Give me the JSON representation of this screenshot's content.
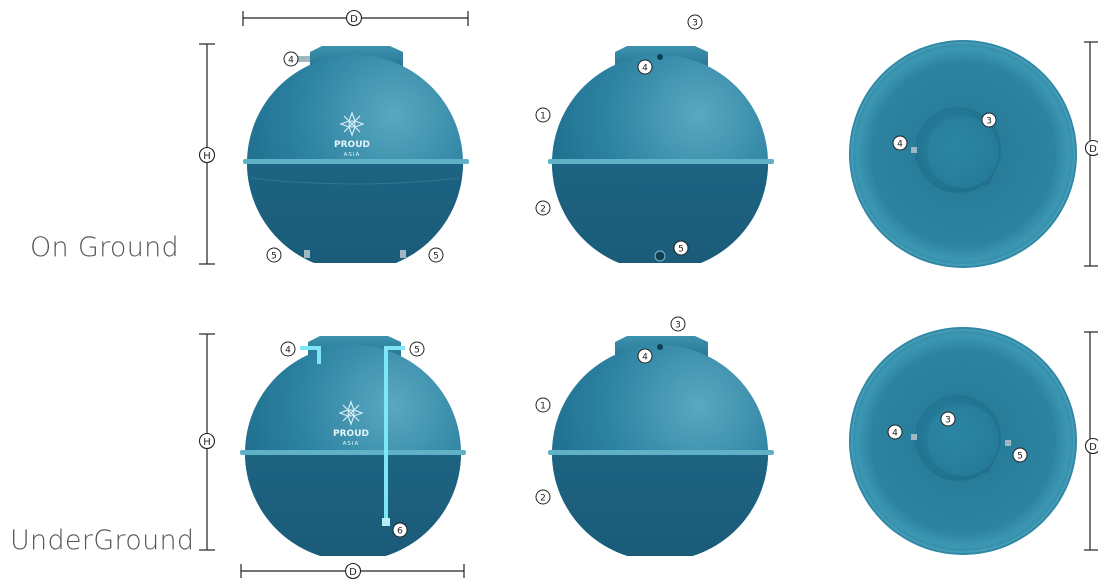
{
  "rows": [
    {
      "label": "On Ground",
      "views": {
        "front": {
          "dimension_height": "H",
          "dimension_width": "D",
          "logo": {
            "name": "PROUD",
            "sub": "ASIA"
          },
          "markers": [
            "4",
            "5",
            "5"
          ]
        },
        "side": {
          "markers": [
            "1",
            "2",
            "3",
            "4",
            "5"
          ]
        },
        "top": {
          "dimension": "D",
          "markers": [
            "3",
            "4"
          ]
        }
      }
    },
    {
      "label": "UnderGround",
      "views": {
        "front": {
          "dimension_height": "H",
          "dimension_width": "D",
          "logo": {
            "name": "PROUD",
            "sub": "ASIA"
          },
          "markers": [
            "4",
            "5",
            "6"
          ]
        },
        "side": {
          "markers": [
            "1",
            "2",
            "3",
            "4"
          ]
        },
        "top": {
          "dimension": "D",
          "markers": [
            "3",
            "4",
            "5"
          ]
        }
      }
    }
  ],
  "colors": {
    "tank_dark": "#1b5f7d",
    "tank_mid": "#2a7f9e",
    "tank_light": "#4ba2bd",
    "rim": "#5fb1c6",
    "pipe": "#7fe6f5",
    "line": "#222222",
    "label": "#555555"
  }
}
